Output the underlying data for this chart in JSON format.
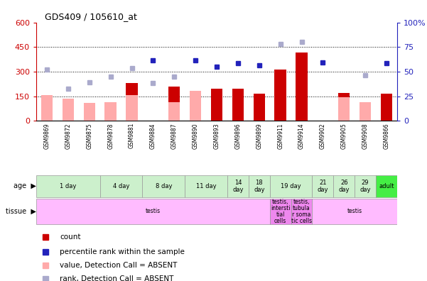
{
  "title": "GDS409 / 105610_at",
  "samples": [
    "GSM9869",
    "GSM9872",
    "GSM9875",
    "GSM9878",
    "GSM9881",
    "GSM9884",
    "GSM9887",
    "GSM9890",
    "GSM9893",
    "GSM9896",
    "GSM9899",
    "GSM9911",
    "GSM9914",
    "GSM9902",
    "GSM9905",
    "GSM9908",
    "GSM9866"
  ],
  "count_values": [
    0,
    0,
    0,
    0,
    230,
    0,
    210,
    0,
    195,
    195,
    165,
    315,
    415,
    0,
    170,
    0,
    165
  ],
  "count_absent": [
    155,
    135,
    110,
    115,
    155,
    0,
    115,
    185,
    0,
    0,
    0,
    0,
    0,
    0,
    145,
    115,
    0
  ],
  "percentile_values": [
    0,
    0,
    0,
    0,
    0,
    370,
    0,
    370,
    330,
    350,
    340,
    0,
    0,
    355,
    0,
    0,
    350
  ],
  "percentile_absent": [
    315,
    195,
    235,
    270,
    320,
    230,
    270,
    0,
    0,
    0,
    0,
    470,
    480,
    0,
    0,
    280,
    0
  ],
  "ylim_left": [
    0,
    600
  ],
  "ylim_right": [
    0,
    100
  ],
  "yticks_left": [
    0,
    150,
    300,
    450,
    600
  ],
  "yticks_right": [
    0,
    25,
    50,
    75,
    100
  ],
  "age_groups": [
    {
      "label": "1 day",
      "start": 0,
      "end": 3,
      "color": "#ccf0cc"
    },
    {
      "label": "4 day",
      "start": 3,
      "end": 5,
      "color": "#ccf0cc"
    },
    {
      "label": "8 day",
      "start": 5,
      "end": 7,
      "color": "#ccf0cc"
    },
    {
      "label": "11 day",
      "start": 7,
      "end": 9,
      "color": "#ccf0cc"
    },
    {
      "label": "14\nday",
      "start": 9,
      "end": 10,
      "color": "#ccf0cc"
    },
    {
      "label": "18\nday",
      "start": 10,
      "end": 11,
      "color": "#ccf0cc"
    },
    {
      "label": "19 day",
      "start": 11,
      "end": 13,
      "color": "#ccf0cc"
    },
    {
      "label": "21\nday",
      "start": 13,
      "end": 14,
      "color": "#ccf0cc"
    },
    {
      "label": "26\nday",
      "start": 14,
      "end": 15,
      "color": "#ccf0cc"
    },
    {
      "label": "29\nday",
      "start": 15,
      "end": 16,
      "color": "#ccf0cc"
    },
    {
      "label": "adult",
      "start": 16,
      "end": 17,
      "color": "#44ee44"
    }
  ],
  "tissue_groups": [
    {
      "label": "testis",
      "start": 0,
      "end": 11,
      "color": "#ffbbff"
    },
    {
      "label": "testis,\nintersti\ntial\ncells",
      "start": 11,
      "end": 12,
      "color": "#ee88ee"
    },
    {
      "label": "testis,\ntubula\nr soma\ntic cells",
      "start": 12,
      "end": 13,
      "color": "#ee88ee"
    },
    {
      "label": "testis",
      "start": 13,
      "end": 17,
      "color": "#ffbbff"
    }
  ],
  "bar_color": "#cc0000",
  "bar_absent_color": "#ffaaaa",
  "dot_color": "#2222bb",
  "dot_absent_color": "#aaaacc",
  "bg_color": "#ffffff",
  "plot_bg": "#ffffff",
  "axis_color_left": "#cc0000",
  "axis_color_right": "#2222bb",
  "legend_items": [
    {
      "color": "#cc0000",
      "label": "count"
    },
    {
      "color": "#2222bb",
      "label": "percentile rank within the sample"
    },
    {
      "color": "#ffaaaa",
      "label": "value, Detection Call = ABSENT"
    },
    {
      "color": "#aaaacc",
      "label": "rank, Detection Call = ABSENT"
    }
  ]
}
